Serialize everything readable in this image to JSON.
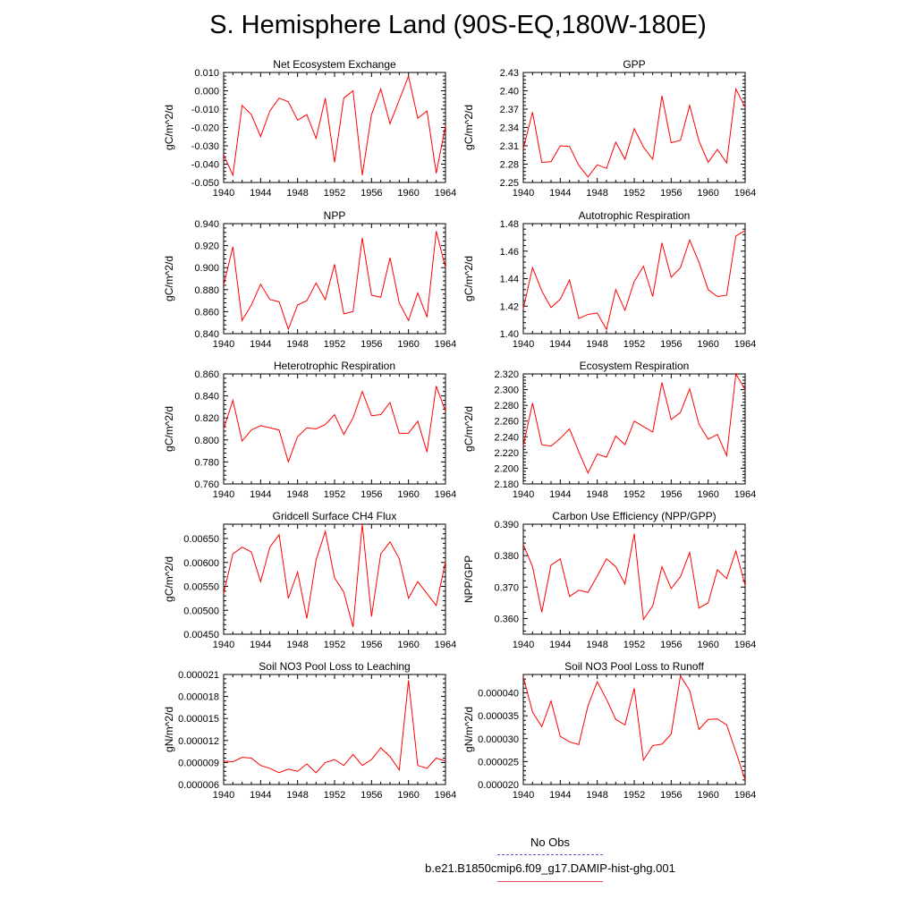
{
  "title": "S. Hemisphere Land (90S-EQ,180W-180E)",
  "legend": [
    {
      "label": "No Obs",
      "style": "dashed",
      "color": "#5b5bd6"
    },
    {
      "label": "b.e21.B1850cmip6.f09_g17.DAMIP-hist-ghg.001",
      "style": "solid",
      "color": "#e0505a"
    }
  ],
  "line_color": "#ff0000",
  "chart_data": [
    {
      "type": "line",
      "title": "Net Ecosystem Exchange",
      "ylabel": "gC/m^2/d",
      "xlim": [
        1940,
        1964
      ],
      "ylim": [
        -0.05,
        0.01
      ],
      "xticks": [
        1940,
        1944,
        1948,
        1952,
        1956,
        1960,
        1964
      ],
      "yticks": [
        "0.010",
        "0.000",
        "-0.010",
        "-0.020",
        "-0.030",
        "-0.040",
        "-0.050"
      ],
      "x": [
        1940,
        1941,
        1942,
        1943,
        1944,
        1945,
        1946,
        1947,
        1948,
        1949,
        1950,
        1951,
        1952,
        1953,
        1954,
        1955,
        1956,
        1957,
        1958,
        1959,
        1960,
        1961,
        1962,
        1963,
        1964
      ],
      "values": [
        -0.035,
        -0.046,
        -0.008,
        -0.013,
        -0.025,
        -0.011,
        -0.004,
        -0.006,
        -0.016,
        -0.013,
        -0.026,
        -0.004,
        -0.039,
        -0.004,
        0.0,
        -0.046,
        -0.013,
        0.001,
        -0.018,
        -0.005,
        0.008,
        -0.015,
        -0.011,
        -0.045,
        -0.019
      ]
    },
    {
      "type": "line",
      "title": "GPP",
      "ylabel": "gC/m^2/d",
      "xlim": [
        1940,
        1964
      ],
      "ylim": [
        2.25,
        2.43
      ],
      "xticks": [
        1940,
        1944,
        1948,
        1952,
        1956,
        1960,
        1964
      ],
      "yticks": [
        "2.43",
        "2.40",
        "2.37",
        "2.34",
        "2.31",
        "2.28",
        "2.25"
      ],
      "x": [
        1940,
        1941,
        1942,
        1943,
        1944,
        1945,
        1946,
        1947,
        1948,
        1949,
        1950,
        1951,
        1952,
        1953,
        1954,
        1955,
        1956,
        1957,
        1958,
        1959,
        1960,
        1961,
        1962,
        1963,
        1964
      ],
      "values": [
        2.305,
        2.365,
        2.283,
        2.284,
        2.31,
        2.309,
        2.278,
        2.259,
        2.279,
        2.273,
        2.316,
        2.288,
        2.338,
        2.308,
        2.288,
        2.392,
        2.315,
        2.319,
        2.376,
        2.318,
        2.283,
        2.304,
        2.282,
        2.403,
        2.373
      ]
    },
    {
      "type": "line",
      "title": "NPP",
      "ylabel": "gC/m^2/d",
      "xlim": [
        1940,
        1964
      ],
      "ylim": [
        0.84,
        0.94
      ],
      "xticks": [
        1940,
        1944,
        1948,
        1952,
        1956,
        1960,
        1964
      ],
      "yticks": [
        "0.940",
        "0.920",
        "0.900",
        "0.880",
        "0.860",
        "0.840"
      ],
      "x": [
        1940,
        1941,
        1942,
        1943,
        1944,
        1945,
        1946,
        1947,
        1948,
        1949,
        1950,
        1951,
        1952,
        1953,
        1954,
        1955,
        1956,
        1957,
        1958,
        1959,
        1960,
        1961,
        1962,
        1963,
        1964
      ],
      "values": [
        0.884,
        0.919,
        0.852,
        0.866,
        0.885,
        0.871,
        0.869,
        0.844,
        0.866,
        0.87,
        0.886,
        0.871,
        0.903,
        0.858,
        0.86,
        0.927,
        0.875,
        0.873,
        0.909,
        0.868,
        0.852,
        0.877,
        0.855,
        0.933,
        0.9
      ]
    },
    {
      "type": "line",
      "title": "Autotrophic Respiration",
      "ylabel": "gC/m^2/d",
      "xlim": [
        1940,
        1964
      ],
      "ylim": [
        1.4,
        1.48
      ],
      "xticks": [
        1940,
        1944,
        1948,
        1952,
        1956,
        1960,
        1964
      ],
      "yticks": [
        "1.48",
        "1.46",
        "1.44",
        "1.42",
        "1.40"
      ],
      "x": [
        1940,
        1941,
        1942,
        1943,
        1944,
        1945,
        1946,
        1947,
        1948,
        1949,
        1950,
        1951,
        1952,
        1953,
        1954,
        1955,
        1956,
        1957,
        1958,
        1959,
        1960,
        1961,
        1962,
        1963,
        1964
      ],
      "values": [
        1.418,
        1.448,
        1.431,
        1.419,
        1.425,
        1.439,
        1.411,
        1.414,
        1.415,
        1.403,
        1.432,
        1.417,
        1.438,
        1.449,
        1.427,
        1.466,
        1.441,
        1.448,
        1.468,
        1.452,
        1.432,
        1.427,
        1.428,
        1.471,
        1.475
      ]
    },
    {
      "type": "line",
      "title": "Heterotrophic Respiration",
      "ylabel": "gC/m^2/d",
      "xlim": [
        1940,
        1964
      ],
      "ylim": [
        0.76,
        0.86
      ],
      "xticks": [
        1940,
        1944,
        1948,
        1952,
        1956,
        1960,
        1964
      ],
      "yticks": [
        "0.860",
        "0.840",
        "0.820",
        "0.800",
        "0.780",
        "0.760"
      ],
      "x": [
        1940,
        1941,
        1942,
        1943,
        1944,
        1945,
        1946,
        1947,
        1948,
        1949,
        1950,
        1951,
        1952,
        1953,
        1954,
        1955,
        1956,
        1957,
        1958,
        1959,
        1960,
        1961,
        1962,
        1963,
        1964
      ],
      "values": [
        0.81,
        0.836,
        0.799,
        0.809,
        0.813,
        0.811,
        0.809,
        0.78,
        0.803,
        0.811,
        0.81,
        0.814,
        0.823,
        0.805,
        0.82,
        0.844,
        0.822,
        0.823,
        0.834,
        0.806,
        0.806,
        0.817,
        0.789,
        0.849,
        0.826
      ]
    },
    {
      "type": "line",
      "title": "Ecosystem Respiration",
      "ylabel": "gC/m^2/d",
      "xlim": [
        1940,
        1964
      ],
      "ylim": [
        2.18,
        2.32
      ],
      "xticks": [
        1940,
        1944,
        1948,
        1952,
        1956,
        1960,
        1964
      ],
      "yticks": [
        "2.320",
        "2.300",
        "2.280",
        "2.260",
        "2.240",
        "2.220",
        "2.200",
        "2.180"
      ],
      "x": [
        1940,
        1941,
        1942,
        1943,
        1944,
        1945,
        1946,
        1947,
        1948,
        1949,
        1950,
        1951,
        1952,
        1953,
        1954,
        1955,
        1956,
        1957,
        1958,
        1959,
        1960,
        1961,
        1962,
        1963,
        1964
      ],
      "values": [
        2.228,
        2.283,
        2.23,
        2.228,
        2.238,
        2.25,
        2.221,
        2.194,
        2.218,
        2.214,
        2.241,
        2.23,
        2.26,
        2.253,
        2.246,
        2.309,
        2.262,
        2.271,
        2.301,
        2.256,
        2.237,
        2.243,
        2.216,
        2.32,
        2.3
      ]
    },
    {
      "type": "line",
      "title": "Gridcell Surface CH4 Flux",
      "ylabel": "gC/m^2/d",
      "xlim": [
        1940,
        1964
      ],
      "ylim": [
        0.0045,
        0.0068
      ],
      "xticks": [
        1940,
        1944,
        1948,
        1952,
        1956,
        1960,
        1964
      ],
      "yticks": [
        "0.00650",
        "0.00600",
        "0.00550",
        "0.00500",
        "0.00450"
      ],
      "x": [
        1940,
        1941,
        1942,
        1943,
        1944,
        1945,
        1946,
        1947,
        1948,
        1949,
        1950,
        1951,
        1952,
        1953,
        1954,
        1955,
        1956,
        1957,
        1958,
        1959,
        1960,
        1961,
        1962,
        1963,
        1964
      ],
      "values": [
        0.00535,
        0.00618,
        0.00632,
        0.00622,
        0.0056,
        0.00632,
        0.00658,
        0.00525,
        0.0058,
        0.00483,
        0.00605,
        0.00665,
        0.00568,
        0.00538,
        0.00465,
        0.0068,
        0.00487,
        0.00618,
        0.00643,
        0.00608,
        0.00525,
        0.0056,
        0.00535,
        0.0051,
        0.00602
      ]
    },
    {
      "type": "line",
      "title": "Carbon Use Efficiency (NPP/GPP)",
      "ylabel": "NPP/GPP",
      "xlim": [
        1940,
        1964
      ],
      "ylim": [
        0.355,
        0.39
      ],
      "xticks": [
        1940,
        1944,
        1948,
        1952,
        1956,
        1960,
        1964
      ],
      "yticks": [
        "0.390",
        "0.380",
        "0.370",
        "0.360"
      ],
      "x": [
        1940,
        1941,
        1942,
        1943,
        1944,
        1945,
        1946,
        1947,
        1948,
        1949,
        1950,
        1951,
        1952,
        1953,
        1954,
        1955,
        1956,
        1957,
        1958,
        1959,
        1960,
        1961,
        1962,
        1963,
        1964
      ],
      "values": [
        0.3835,
        0.3765,
        0.362,
        0.377,
        0.379,
        0.367,
        0.369,
        0.3683,
        0.3735,
        0.379,
        0.3765,
        0.371,
        0.387,
        0.3597,
        0.364,
        0.3765,
        0.3695,
        0.3733,
        0.381,
        0.3633,
        0.365,
        0.3755,
        0.3727,
        0.3815,
        0.3705
      ]
    },
    {
      "type": "line",
      "title": "Soil NO3 Pool Loss to Leaching",
      "ylabel": "gN/m^2/d",
      "xlim": [
        1940,
        1964
      ],
      "ylim": [
        6e-06,
        2.1e-05
      ],
      "xticks": [
        1940,
        1944,
        1948,
        1952,
        1956,
        1960,
        1964
      ],
      "yticks": [
        "0.000021",
        "0.000018",
        "0.000015",
        "0.000012",
        "0.000009",
        "0.000006"
      ],
      "x": [
        1940,
        1941,
        1942,
        1943,
        1944,
        1945,
        1946,
        1947,
        1948,
        1949,
        1950,
        1951,
        1952,
        1953,
        1954,
        1955,
        1956,
        1957,
        1958,
        1959,
        1960,
        1961,
        1962,
        1963,
        1964
      ],
      "values": [
        9.2e-06,
        9.1e-06,
        9.7e-06,
        9.6e-06,
        8.6e-06,
        8.2e-06,
        7.6e-06,
        8.1e-06,
        7.8e-06,
        8.8e-06,
        7.6e-06,
        9e-06,
        9.4e-06,
        8.6e-06,
        1.01e-05,
        8.6e-06,
        9.4e-06,
        1.1e-05,
        9.8e-06,
        8e-06,
        2.02e-05,
        8.6e-06,
        8.2e-06,
        9.6e-06,
        9.2e-06
      ]
    },
    {
      "type": "line",
      "title": "Soil NO3 Pool Loss to Runoff",
      "ylabel": "gN/m^2/d",
      "xlim": [
        1940,
        1964
      ],
      "ylim": [
        2e-05,
        4.4e-05
      ],
      "xticks": [
        1940,
        1944,
        1948,
        1952,
        1956,
        1960,
        1964
      ],
      "yticks": [
        "0.000040",
        "0.000035",
        "0.000030",
        "0.000025",
        "0.000020"
      ],
      "x": [
        1940,
        1941,
        1942,
        1943,
        1944,
        1945,
        1946,
        1947,
        1948,
        1949,
        1950,
        1951,
        1952,
        1953,
        1954,
        1955,
        1956,
        1957,
        1958,
        1959,
        1960,
        1961,
        1962,
        1963,
        1964
      ],
      "values": [
        4.35e-05,
        3.58e-05,
        3.26e-05,
        3.82e-05,
        3.05e-05,
        2.93e-05,
        2.87e-05,
        3.72e-05,
        4.24e-05,
        3.86e-05,
        3.42e-05,
        3.3e-05,
        4.1e-05,
        2.53e-05,
        2.85e-05,
        2.88e-05,
        3.1e-05,
        4.37e-05,
        4.05e-05,
        3.2e-05,
        3.42e-05,
        3.43e-05,
        3.3e-05,
        2.71e-05,
        2.1e-05
      ]
    }
  ]
}
